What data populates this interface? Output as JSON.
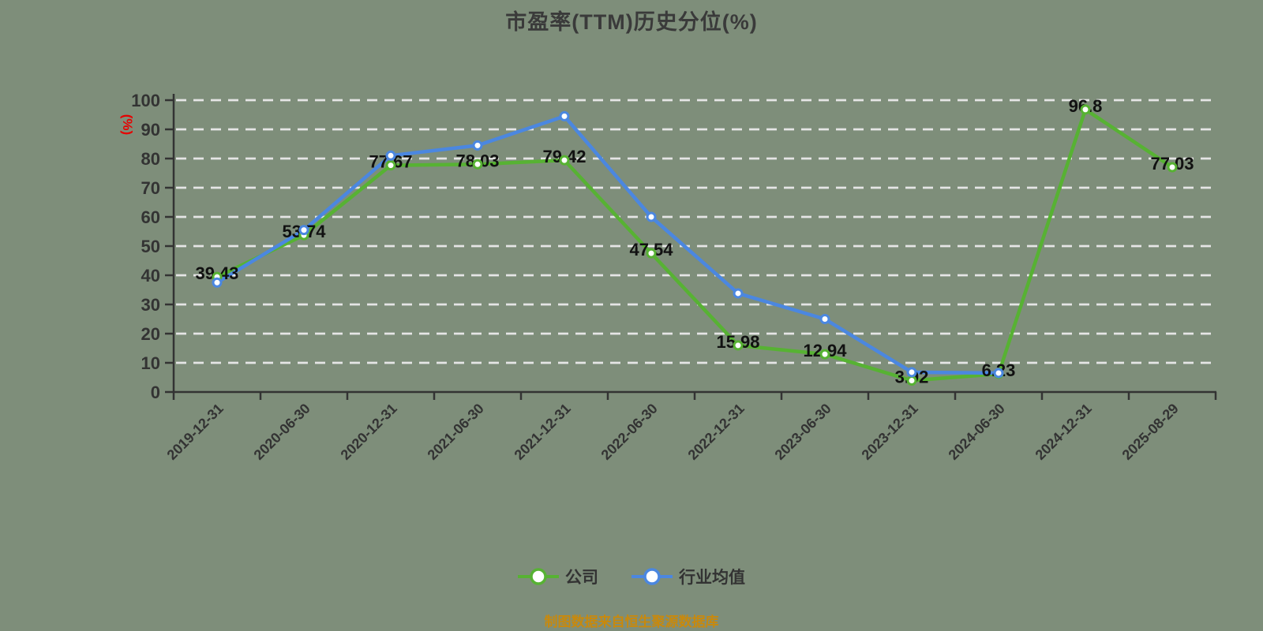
{
  "title": "市盈率(TTM)历史分位(%)",
  "y_axis_name": "(%)",
  "footer": "制图数据来自恒生聚源数据库",
  "colors": {
    "background": "#7e8e7a",
    "company_green": "#57b233",
    "industry_blue": "#4b87e0",
    "gridline": "#e5e5e5",
    "axis": "#333333",
    "tick_label": "#333333",
    "data_label": "#111111",
    "axis_name_red": "#e60000",
    "footer_orange": "#c8890d",
    "marker_fill": "#ffffff"
  },
  "legend": {
    "items": [
      {
        "label": "公司",
        "color": "#57b233"
      },
      {
        "label": "行业均值",
        "color": "#4b87e0"
      }
    ]
  },
  "chart_data": {
    "type": "line",
    "title": "市盈率(TTM)历史分位(%)",
    "ylabel": "(%)",
    "ylim": [
      0,
      100
    ],
    "y_tick_interval": 10,
    "grid": "dashed-horizontal",
    "legend_position": "bottom",
    "categories": [
      "2019-12-31",
      "2020-06-30",
      "2020-12-31",
      "2021-06-30",
      "2021-12-31",
      "2022-06-30",
      "2022-12-31",
      "2023-06-30",
      "2023-12-31",
      "2024-06-30",
      "2024-12-31",
      "2025-08-29"
    ],
    "series": [
      {
        "name": "公司",
        "color": "#57b233",
        "values": [
          39.43,
          53.74,
          77.67,
          78.03,
          79.42,
          47.54,
          15.98,
          12.94,
          3.92,
          6.23,
          96.8,
          77.03
        ],
        "labels": [
          "39.43",
          "53.74",
          "77.67",
          "78.03",
          "79.42",
          "47.54",
          "15.98",
          "12.94",
          "3.92",
          "6.23",
          "96.8",
          "77.03"
        ],
        "show_labels": true
      },
      {
        "name": "行业均值",
        "color": "#4b87e0",
        "values": [
          37.5,
          55.5,
          81.0,
          84.5,
          94.5,
          60.0,
          33.8,
          25.0,
          6.8,
          6.5,
          null,
          null
        ],
        "labels": [],
        "show_labels": false
      }
    ]
  }
}
